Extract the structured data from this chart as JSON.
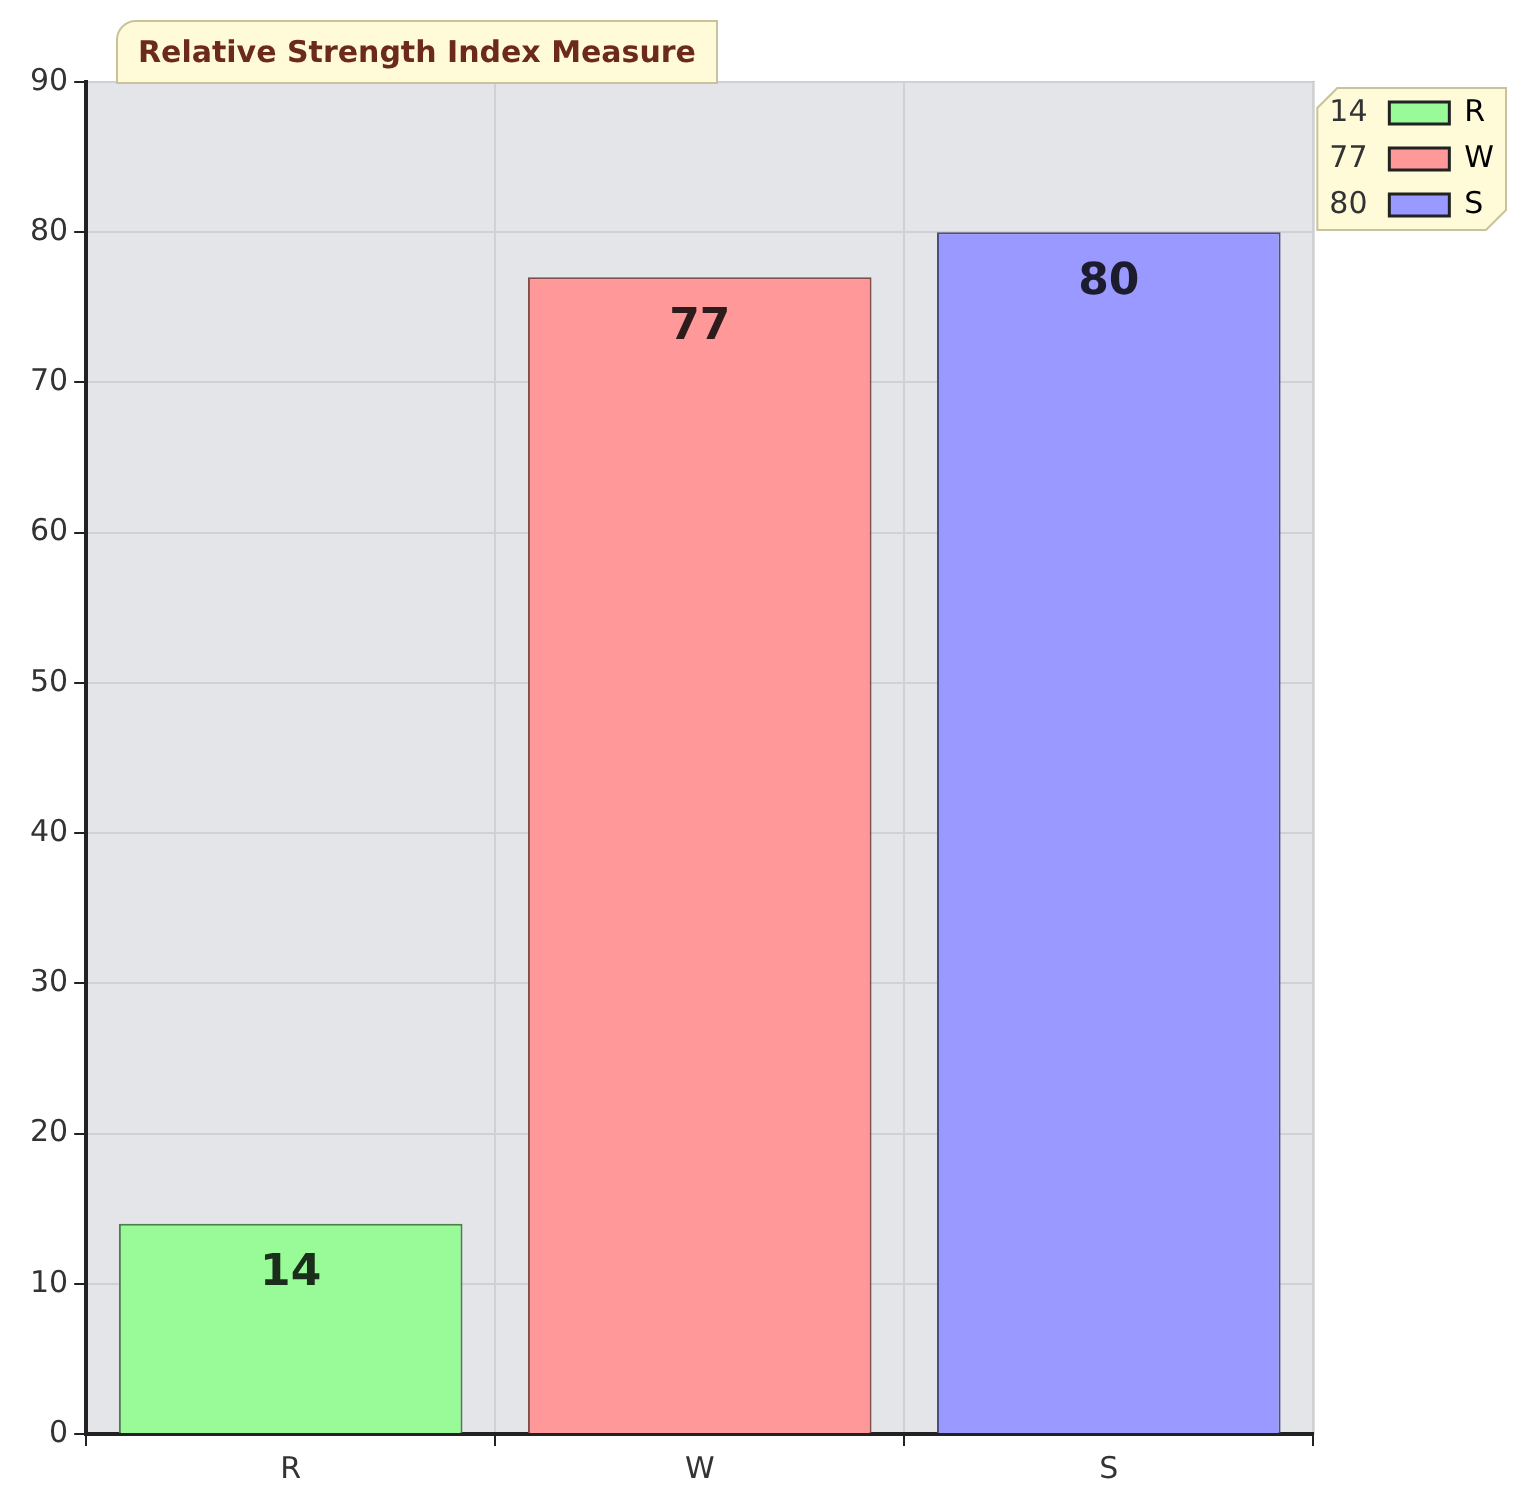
{
  "chart_data": {
    "type": "bar",
    "title": "Relative Strength Index Measure",
    "categories": [
      "R",
      "W",
      "S"
    ],
    "series": [
      {
        "name": "R",
        "color": "#98fb98",
        "values": [
          14,
          null,
          null
        ]
      },
      {
        "name": "W",
        "color": "#ff9999",
        "values": [
          null,
          77,
          null
        ]
      },
      {
        "name": "S",
        "color": "#9999ff",
        "values": [
          null,
          null,
          80
        ]
      }
    ],
    "ylim": [
      0,
      90
    ],
    "yticks": [
      0,
      10,
      20,
      30,
      40,
      50,
      60,
      70,
      80,
      90
    ],
    "annotations": [
      "14",
      "77",
      "80"
    ],
    "grid": true,
    "legend": "top right",
    "data_labels": true
  }
}
